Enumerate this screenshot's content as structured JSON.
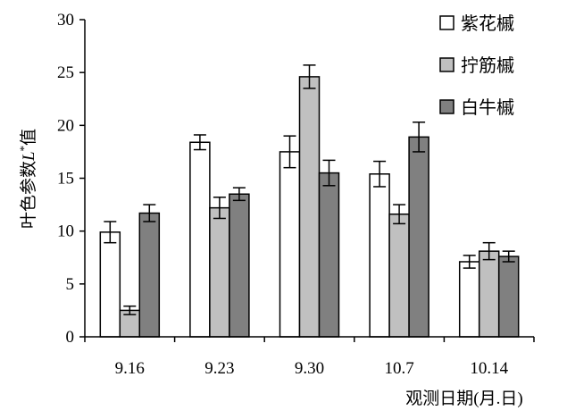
{
  "chart_data": {
    "type": "bar",
    "categories": [
      "9.16",
      "9.23",
      "9.30",
      "10.7",
      "10.14"
    ],
    "series": [
      {
        "name": "紫花槭",
        "color": "#ffffff",
        "values": [
          9.9,
          18.4,
          17.5,
          15.4,
          7.1
        ],
        "errors": [
          1.0,
          0.7,
          1.5,
          1.2,
          0.6
        ]
      },
      {
        "name": "拧筋槭",
        "color": "#c0c0c0",
        "values": [
          2.5,
          12.2,
          24.6,
          11.6,
          8.1
        ],
        "errors": [
          0.4,
          1.0,
          1.1,
          0.9,
          0.8
        ]
      },
      {
        "name": "白牛槭",
        "color": "#808080",
        "values": [
          11.7,
          13.5,
          15.5,
          18.9,
          7.6
        ],
        "errors": [
          0.8,
          0.6,
          1.2,
          1.4,
          0.5
        ]
      }
    ],
    "ylim": [
      0,
      30
    ],
    "yticks": [
      "0",
      "5",
      "10",
      "15",
      "20",
      "25",
      "30"
    ],
    "ylabel": {
      "main": "叶色参数",
      "var": "L",
      "sup": "*",
      "suffix": "值"
    },
    "xlabel": "观测日期(月.日)",
    "legend_position": "top-right",
    "grid": false
  }
}
